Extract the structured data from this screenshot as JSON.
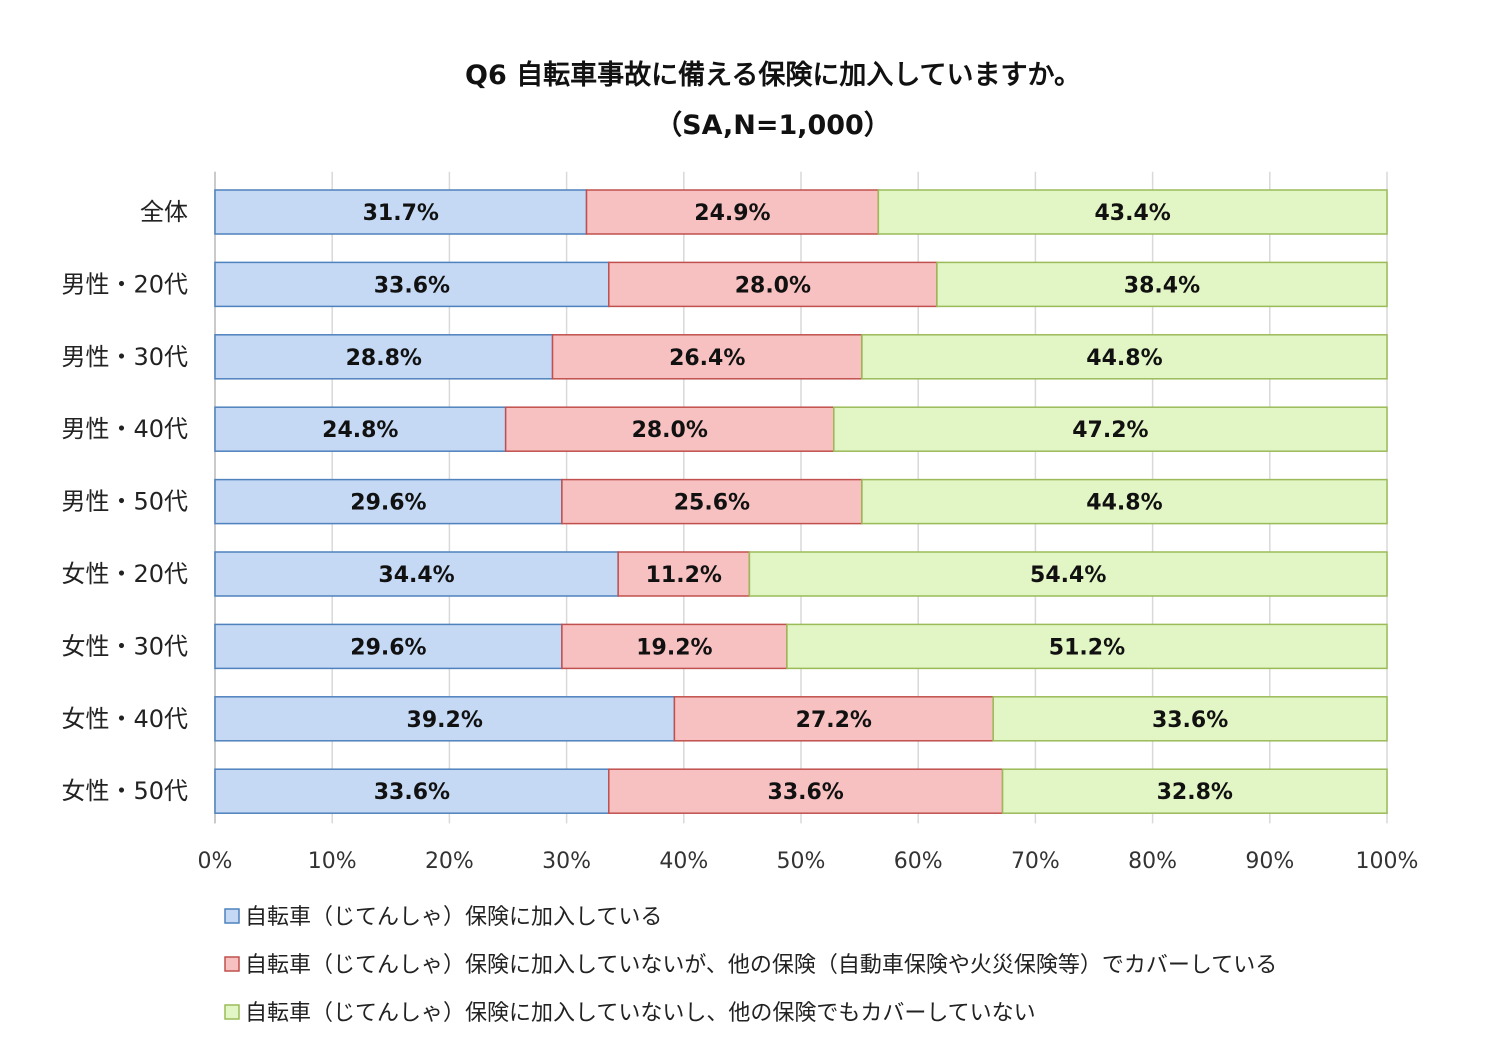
{
  "chart_data": {
    "type": "bar",
    "orientation": "horizontal",
    "stacked": true,
    "title": "Q6 自転車事故に備える保険に加入していますか。",
    "subtitle": "（SA,N=1,000）",
    "categories": [
      "全体",
      "男性・20代",
      "男性・30代",
      "男性・40代",
      "男性・50代",
      "女性・20代",
      "女性・30代",
      "女性・40代",
      "女性・50代"
    ],
    "series": [
      {
        "name": "自転車（じてんしゃ）保険に加入している",
        "color": "#c5d9f5",
        "stroke": "#4f81bd",
        "values": [
          31.7,
          33.6,
          28.8,
          24.8,
          29.6,
          34.4,
          29.6,
          39.2,
          33.6
        ],
        "labels": [
          "31.7%",
          "33.6%",
          "28.8%",
          "24.8%",
          "29.6%",
          "34.4%",
          "29.6%",
          "39.2%",
          "33.6%"
        ]
      },
      {
        "name": "自転車（じてんしゃ）保険に加入していないが、他の保険（自動車保険や火災保険等）でカバーしている",
        "color": "#f8c1c1",
        "stroke": "#c0504d",
        "values": [
          24.9,
          28.0,
          26.4,
          28.0,
          25.6,
          11.2,
          19.2,
          27.2,
          33.6
        ],
        "labels": [
          "24.9%",
          "28.0%",
          "26.4%",
          "28.0%",
          "25.6%",
          "11.2%",
          "19.2%",
          "27.2%",
          "33.6%"
        ]
      },
      {
        "name": "自転車（じてんしゃ）保険に加入していないし、他の保険でもカバーしていない",
        "color": "#e2f5c4",
        "stroke": "#9bbb59",
        "values": [
          43.4,
          38.4,
          44.8,
          47.2,
          44.8,
          54.4,
          51.2,
          33.6,
          32.8
        ],
        "labels": [
          "43.4%",
          "38.4%",
          "44.8%",
          "47.2%",
          "44.8%",
          "54.4%",
          "51.2%",
          "33.6%",
          "32.8%"
        ]
      }
    ],
    "xlim": [
      0,
      100
    ],
    "xticks": [
      "0%",
      "10%",
      "20%",
      "30%",
      "40%",
      "50%",
      "60%",
      "70%",
      "80%",
      "90%",
      "100%"
    ],
    "grid": true,
    "legend": "bottom"
  }
}
